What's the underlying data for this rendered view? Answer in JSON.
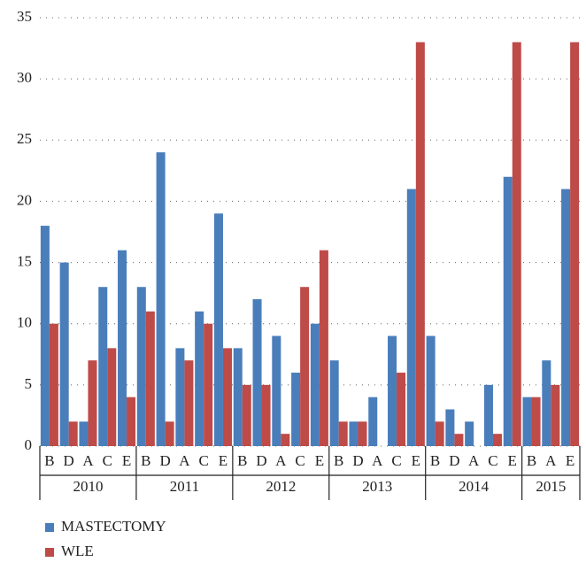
{
  "chart_data": {
    "type": "bar",
    "groups": [
      {
        "name": "2010",
        "categories": [
          "B",
          "D",
          "A",
          "C",
          "E"
        ]
      },
      {
        "name": "2011",
        "categories": [
          "B",
          "D",
          "A",
          "C",
          "E"
        ]
      },
      {
        "name": "2012",
        "categories": [
          "B",
          "D",
          "A",
          "C",
          "E"
        ]
      },
      {
        "name": "2013",
        "categories": [
          "B",
          "D",
          "A",
          "C",
          "E"
        ]
      },
      {
        "name": "2014",
        "categories": [
          "B",
          "D",
          "A",
          "C",
          "E"
        ]
      },
      {
        "name": "2015",
        "categories": [
          "B",
          "A",
          "E"
        ]
      }
    ],
    "series": [
      {
        "name": "MASTECTOMY",
        "color": "#4a7ebb",
        "values": [
          18,
          15,
          2,
          13,
          16,
          13,
          24,
          8,
          11,
          19,
          8,
          12,
          9,
          6,
          10,
          7,
          2,
          4,
          9,
          21,
          9,
          3,
          2,
          5,
          22,
          4,
          7,
          21
        ]
      },
      {
        "name": "WLE",
        "color": "#be4b48",
        "values": [
          10,
          2,
          7,
          8,
          4,
          11,
          2,
          7,
          10,
          8,
          5,
          5,
          1,
          13,
          16,
          2,
          2,
          0,
          6,
          33,
          2,
          1,
          0,
          1,
          33,
          4,
          5,
          33
        ]
      }
    ],
    "ylim": [
      0,
      35
    ],
    "yticks": [
      0,
      5,
      10,
      15,
      20,
      25,
      30,
      35
    ],
    "grid": true
  }
}
